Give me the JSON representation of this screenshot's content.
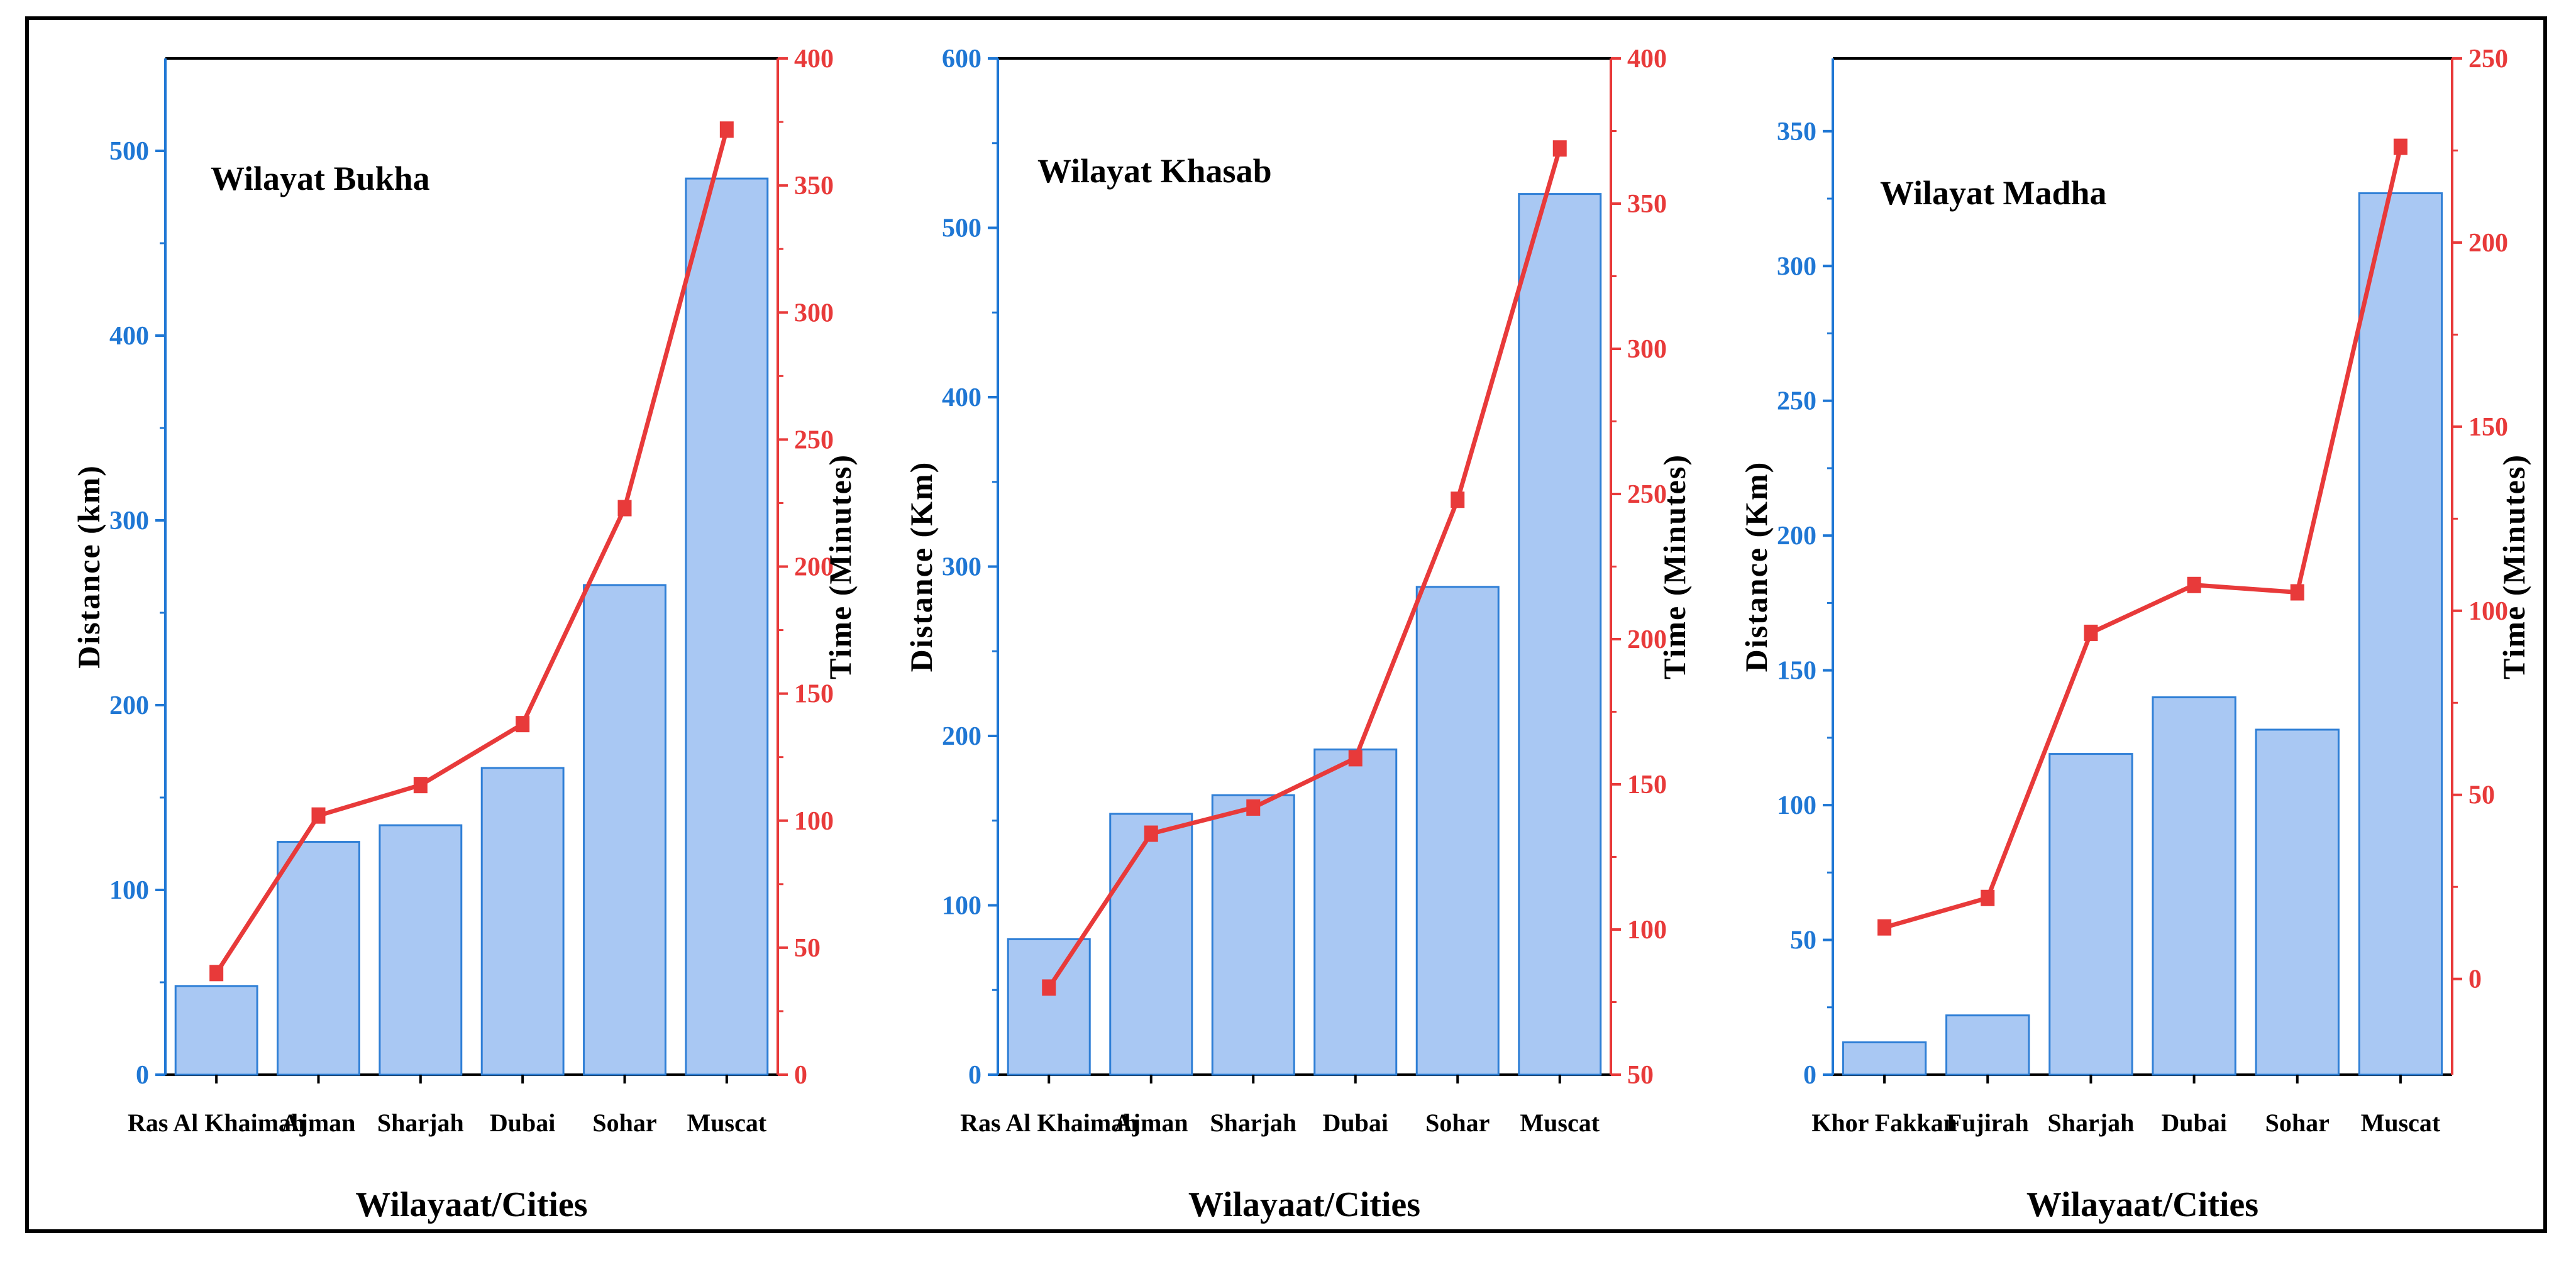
{
  "colors": {
    "bar_fill": "#a9c8f3",
    "bar_stroke": "#2f7fd6",
    "left_axis": "#1f77d4",
    "line": "#e83a3a",
    "frame": "#000000"
  },
  "chart_data": [
    {
      "type": "bar+line",
      "title": "Wilayat Bukha",
      "xlabel": "Wilayaat/Cities",
      "ylabel": "Distance (km)",
      "y2label": "Time (Minutes)",
      "categories": [
        "Ras Al Khaimah",
        "Ajman",
        "Sharjah",
        "Dubai",
        "Sohar",
        "Muscat"
      ],
      "distance": [
        48,
        126,
        135,
        166,
        265,
        485
      ],
      "time": [
        40,
        102,
        114,
        138,
        223,
        372
      ],
      "ylim": [
        0,
        550
      ],
      "yticks": [
        0,
        100,
        200,
        300,
        400,
        500
      ],
      "y2lim": [
        0,
        400
      ],
      "y2ticks": [
        0,
        50,
        100,
        150,
        200,
        250,
        300,
        350,
        400
      ]
    },
    {
      "type": "bar+line",
      "title": "Wilayat Khasab",
      "xlabel": "Wilayaat/Cities",
      "ylabel": "Distance (Km)",
      "y2label": "Time (Minutes)",
      "categories": [
        "Ras Al Khaimah",
        "Ajman",
        "Sharjah",
        "Dubai",
        "Sohar",
        "Muscat"
      ],
      "distance": [
        80,
        154,
        165,
        192,
        288,
        520
      ],
      "time": [
        80,
        133,
        142,
        159,
        248,
        369
      ],
      "ylim": [
        0,
        600
      ],
      "yticks": [
        0,
        100,
        200,
        300,
        400,
        500,
        600
      ],
      "y2lim": [
        50,
        400
      ],
      "y2ticks": [
        50,
        100,
        150,
        200,
        250,
        300,
        350,
        400
      ]
    },
    {
      "type": "bar+line",
      "title": "Wilayat Madha",
      "xlabel": "Wilayaat/Cities",
      "ylabel": "Distance (Km)",
      "y2label": "Time (Minutes)",
      "categories": [
        "Khor Fakkan",
        "Fujirah",
        "Sharjah",
        "Dubai",
        "Sohar",
        "Muscat"
      ],
      "distance": [
        12,
        22,
        119,
        140,
        128,
        327
      ],
      "time": [
        14,
        22,
        94,
        107,
        105,
        226
      ],
      "ylim": [
        0,
        377
      ],
      "yticks": [
        0,
        50,
        100,
        150,
        200,
        250,
        300,
        350
      ],
      "y2lim": [
        -26,
        250
      ],
      "y2ticks": [
        0,
        50,
        100,
        150,
        200,
        250
      ]
    }
  ]
}
